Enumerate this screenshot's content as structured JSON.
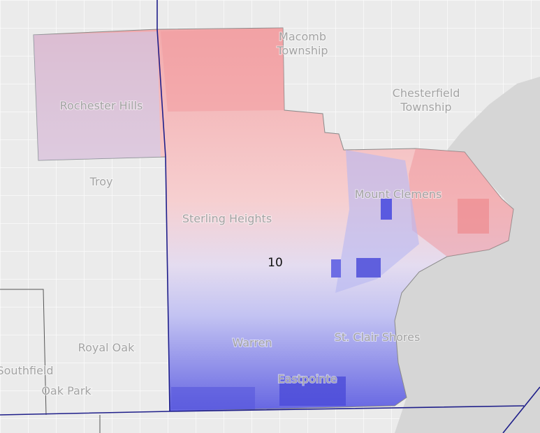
{
  "places": [
    {
      "lines": [
        "Macomb",
        "Township"
      ]
    },
    {
      "lines": [
        "Chesterfield",
        "Township"
      ]
    },
    {
      "lines": [
        "Rochester Hills"
      ]
    },
    {
      "lines": [
        "Troy"
      ]
    },
    {
      "lines": [
        "Mount Clemens"
      ]
    },
    {
      "lines": [
        "Sterling Heights"
      ]
    },
    {
      "lines": [
        "Warren"
      ]
    },
    {
      "lines": [
        "St. Clair Shores"
      ]
    },
    {
      "lines": [
        "Royal Oak"
      ]
    },
    {
      "lines": [
        "Southfield"
      ]
    },
    {
      "lines": [
        "Oak Park"
      ]
    },
    {
      "lines": [
        "Eastpointe"
      ]
    }
  ],
  "district": "10"
}
